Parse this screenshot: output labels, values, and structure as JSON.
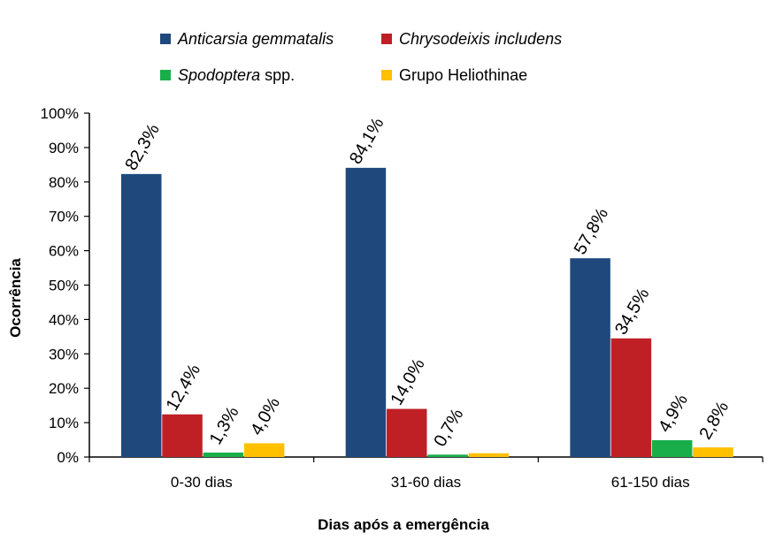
{
  "chart_data": {
    "type": "bar",
    "title": "",
    "xlabel": "Dias após a emergência",
    "ylabel": "Ocorrência",
    "ylim": [
      0,
      100
    ],
    "yticks": [
      "0%",
      "10%",
      "20%",
      "30%",
      "40%",
      "50%",
      "60%",
      "70%",
      "80%",
      "90%",
      "100%"
    ],
    "grid": false,
    "legend_position": "top",
    "categories": [
      "0-30 dias",
      "31-60 dias",
      "61-150 dias"
    ],
    "series": [
      {
        "name": "Anticarsia gemmatalis",
        "legend_parts": [
          {
            "text": "Anticarsia gemmatalis",
            "italic": true
          }
        ],
        "color": "#1F497D",
        "values": [
          82.3,
          84.1,
          57.8
        ],
        "labels": [
          "82,3%",
          "84,1%",
          "57,8%"
        ]
      },
      {
        "name": "Chrysodeixis includens",
        "legend_parts": [
          {
            "text": "Chrysodeixis includens",
            "italic": true
          }
        ],
        "color": "#BE2026",
        "values": [
          12.4,
          14.0,
          34.5
        ],
        "labels": [
          "12,4%",
          "14,0%",
          "34,5%"
        ]
      },
      {
        "name": "Spodoptera spp.",
        "legend_parts": [
          {
            "text": "Spodoptera",
            "italic": true
          },
          {
            "text": " spp.",
            "italic": false
          }
        ],
        "color": "#1AAE4A",
        "values": [
          1.3,
          0.7,
          4.9
        ],
        "labels": [
          "1,3%",
          "0,7%",
          "4,9%"
        ]
      },
      {
        "name": "Grupo Heliothinae",
        "legend_parts": [
          {
            "text": "Grupo Heliothinae",
            "italic": false
          }
        ],
        "color": "#FFC000",
        "values": [
          4.0,
          1.1,
          2.8
        ],
        "labels": [
          "4,0%",
          "",
          "2,8%"
        ]
      }
    ]
  }
}
